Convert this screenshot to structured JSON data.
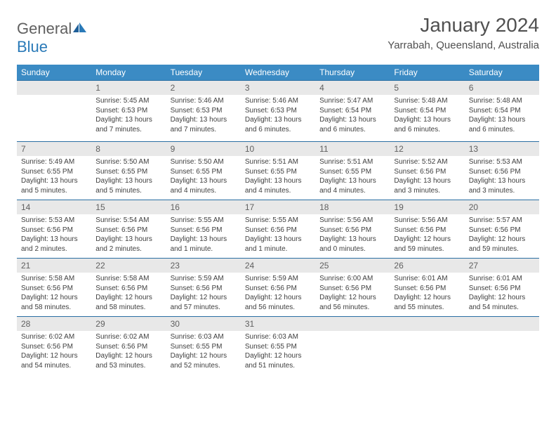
{
  "logo": {
    "text1": "General",
    "text2": "Blue"
  },
  "title": "January 2024",
  "location": "Yarrabah, Queensland, Australia",
  "header_bg": "#3b8bc4",
  "weekdays": [
    "Sunday",
    "Monday",
    "Tuesday",
    "Wednesday",
    "Thursday",
    "Friday",
    "Saturday"
  ],
  "weeks": [
    [
      {
        "n": "",
        "sr": "",
        "ss": "",
        "dl": ""
      },
      {
        "n": "1",
        "sr": "Sunrise: 5:45 AM",
        "ss": "Sunset: 6:53 PM",
        "dl": "Daylight: 13 hours and 7 minutes."
      },
      {
        "n": "2",
        "sr": "Sunrise: 5:46 AM",
        "ss": "Sunset: 6:53 PM",
        "dl": "Daylight: 13 hours and 7 minutes."
      },
      {
        "n": "3",
        "sr": "Sunrise: 5:46 AM",
        "ss": "Sunset: 6:53 PM",
        "dl": "Daylight: 13 hours and 6 minutes."
      },
      {
        "n": "4",
        "sr": "Sunrise: 5:47 AM",
        "ss": "Sunset: 6:54 PM",
        "dl": "Daylight: 13 hours and 6 minutes."
      },
      {
        "n": "5",
        "sr": "Sunrise: 5:48 AM",
        "ss": "Sunset: 6:54 PM",
        "dl": "Daylight: 13 hours and 6 minutes."
      },
      {
        "n": "6",
        "sr": "Sunrise: 5:48 AM",
        "ss": "Sunset: 6:54 PM",
        "dl": "Daylight: 13 hours and 6 minutes."
      }
    ],
    [
      {
        "n": "7",
        "sr": "Sunrise: 5:49 AM",
        "ss": "Sunset: 6:55 PM",
        "dl": "Daylight: 13 hours and 5 minutes."
      },
      {
        "n": "8",
        "sr": "Sunrise: 5:50 AM",
        "ss": "Sunset: 6:55 PM",
        "dl": "Daylight: 13 hours and 5 minutes."
      },
      {
        "n": "9",
        "sr": "Sunrise: 5:50 AM",
        "ss": "Sunset: 6:55 PM",
        "dl": "Daylight: 13 hours and 4 minutes."
      },
      {
        "n": "10",
        "sr": "Sunrise: 5:51 AM",
        "ss": "Sunset: 6:55 PM",
        "dl": "Daylight: 13 hours and 4 minutes."
      },
      {
        "n": "11",
        "sr": "Sunrise: 5:51 AM",
        "ss": "Sunset: 6:55 PM",
        "dl": "Daylight: 13 hours and 4 minutes."
      },
      {
        "n": "12",
        "sr": "Sunrise: 5:52 AM",
        "ss": "Sunset: 6:56 PM",
        "dl": "Daylight: 13 hours and 3 minutes."
      },
      {
        "n": "13",
        "sr": "Sunrise: 5:53 AM",
        "ss": "Sunset: 6:56 PM",
        "dl": "Daylight: 13 hours and 3 minutes."
      }
    ],
    [
      {
        "n": "14",
        "sr": "Sunrise: 5:53 AM",
        "ss": "Sunset: 6:56 PM",
        "dl": "Daylight: 13 hours and 2 minutes."
      },
      {
        "n": "15",
        "sr": "Sunrise: 5:54 AM",
        "ss": "Sunset: 6:56 PM",
        "dl": "Daylight: 13 hours and 2 minutes."
      },
      {
        "n": "16",
        "sr": "Sunrise: 5:55 AM",
        "ss": "Sunset: 6:56 PM",
        "dl": "Daylight: 13 hours and 1 minute."
      },
      {
        "n": "17",
        "sr": "Sunrise: 5:55 AM",
        "ss": "Sunset: 6:56 PM",
        "dl": "Daylight: 13 hours and 1 minute."
      },
      {
        "n": "18",
        "sr": "Sunrise: 5:56 AM",
        "ss": "Sunset: 6:56 PM",
        "dl": "Daylight: 13 hours and 0 minutes."
      },
      {
        "n": "19",
        "sr": "Sunrise: 5:56 AM",
        "ss": "Sunset: 6:56 PM",
        "dl": "Daylight: 12 hours and 59 minutes."
      },
      {
        "n": "20",
        "sr": "Sunrise: 5:57 AM",
        "ss": "Sunset: 6:56 PM",
        "dl": "Daylight: 12 hours and 59 minutes."
      }
    ],
    [
      {
        "n": "21",
        "sr": "Sunrise: 5:58 AM",
        "ss": "Sunset: 6:56 PM",
        "dl": "Daylight: 12 hours and 58 minutes."
      },
      {
        "n": "22",
        "sr": "Sunrise: 5:58 AM",
        "ss": "Sunset: 6:56 PM",
        "dl": "Daylight: 12 hours and 58 minutes."
      },
      {
        "n": "23",
        "sr": "Sunrise: 5:59 AM",
        "ss": "Sunset: 6:56 PM",
        "dl": "Daylight: 12 hours and 57 minutes."
      },
      {
        "n": "24",
        "sr": "Sunrise: 5:59 AM",
        "ss": "Sunset: 6:56 PM",
        "dl": "Daylight: 12 hours and 56 minutes."
      },
      {
        "n": "25",
        "sr": "Sunrise: 6:00 AM",
        "ss": "Sunset: 6:56 PM",
        "dl": "Daylight: 12 hours and 56 minutes."
      },
      {
        "n": "26",
        "sr": "Sunrise: 6:01 AM",
        "ss": "Sunset: 6:56 PM",
        "dl": "Daylight: 12 hours and 55 minutes."
      },
      {
        "n": "27",
        "sr": "Sunrise: 6:01 AM",
        "ss": "Sunset: 6:56 PM",
        "dl": "Daylight: 12 hours and 54 minutes."
      }
    ],
    [
      {
        "n": "28",
        "sr": "Sunrise: 6:02 AM",
        "ss": "Sunset: 6:56 PM",
        "dl": "Daylight: 12 hours and 54 minutes."
      },
      {
        "n": "29",
        "sr": "Sunrise: 6:02 AM",
        "ss": "Sunset: 6:56 PM",
        "dl": "Daylight: 12 hours and 53 minutes."
      },
      {
        "n": "30",
        "sr": "Sunrise: 6:03 AM",
        "ss": "Sunset: 6:55 PM",
        "dl": "Daylight: 12 hours and 52 minutes."
      },
      {
        "n": "31",
        "sr": "Sunrise: 6:03 AM",
        "ss": "Sunset: 6:55 PM",
        "dl": "Daylight: 12 hours and 51 minutes."
      },
      {
        "n": "",
        "sr": "",
        "ss": "",
        "dl": ""
      },
      {
        "n": "",
        "sr": "",
        "ss": "",
        "dl": ""
      },
      {
        "n": "",
        "sr": "",
        "ss": "",
        "dl": ""
      }
    ]
  ]
}
